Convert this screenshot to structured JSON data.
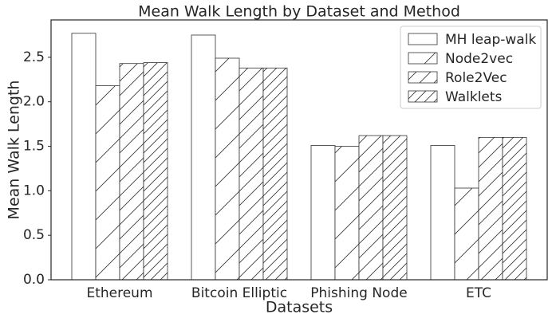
{
  "chart_data": {
    "type": "bar",
    "title": "Mean Walk Length by Dataset and Method",
    "x_label": "Datasets",
    "y_label": "Mean Walk Length",
    "categories": [
      "Ethereum",
      "Bitcoin Elliptic",
      "Phishing Node",
      "ETC"
    ],
    "series": [
      {
        "name": "MH leap-walk",
        "color": "#ffffff",
        "hatch": "",
        "values": [
          2.77,
          2.75,
          1.51,
          1.51
        ]
      },
      {
        "name": "Node2vec",
        "color": "#ffffff",
        "hatch": "/",
        "values": [
          2.18,
          2.49,
          1.5,
          1.03
        ]
      },
      {
        "name": "Role2Vec",
        "color": "#ffffff",
        "hatch": "//",
        "values": [
          2.43,
          2.38,
          1.62,
          1.6
        ]
      },
      {
        "name": "Walklets",
        "color": "#ffffff",
        "hatch": "///",
        "values": [
          2.44,
          2.38,
          1.62,
          1.6
        ]
      }
    ],
    "ylim": [
      0,
      2.92
    ],
    "yticks": [
      {
        "value": 0,
        "label": "0.0"
      },
      {
        "value": 0.5,
        "label": "0.5"
      },
      {
        "value": 1,
        "label": "1.0"
      },
      {
        "value": 1.5,
        "label": "1.5"
      },
      {
        "value": 2,
        "label": "2.0"
      },
      {
        "value": 2.5,
        "label": "2.5"
      }
    ],
    "grid": false,
    "legend": "upper-right"
  }
}
